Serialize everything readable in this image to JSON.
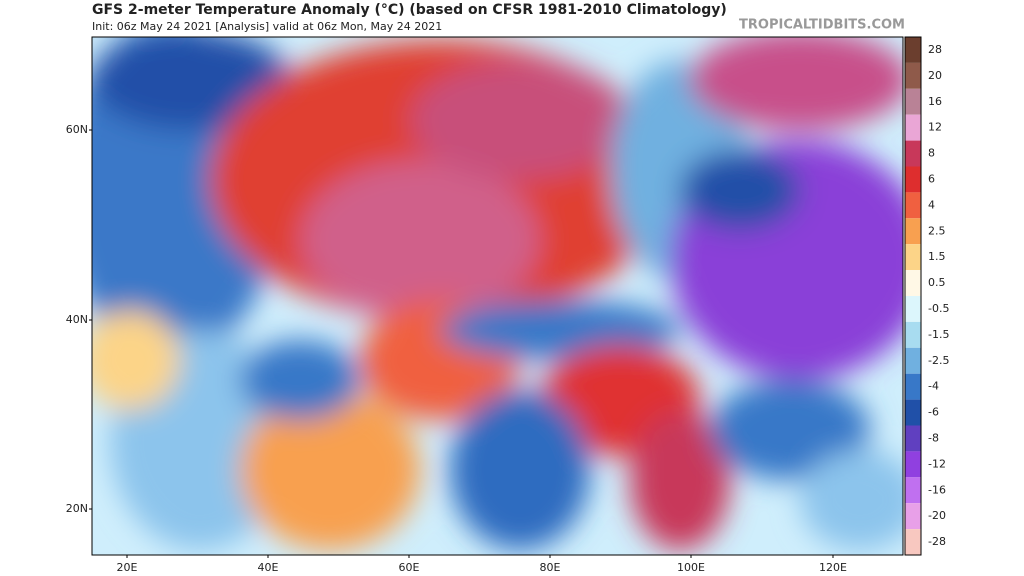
{
  "header": {
    "title": "GFS 2-meter Temperature Anomaly (°C) (based on CFSR 1981-2010 Climatology)",
    "subtitle": "Init: 06z May 24 2021   [Analysis]   valid at 06z Mon, May 24 2021",
    "watermark": "TROPICALTIDBITS.COM"
  },
  "map": {
    "lat_labels": [
      "60N",
      "40N",
      "20N"
    ],
    "lon_labels": [
      "20E",
      "40E",
      "60E",
      "80E",
      "100E",
      "120E"
    ]
  },
  "colorbar": [
    {
      "value": 28,
      "color": "#6b3e2e"
    },
    {
      "value": 20,
      "color": "#8f5a4a"
    },
    {
      "value": 16,
      "color": "#b98296"
    },
    {
      "value": 12,
      "color": "#eaa6d6"
    },
    {
      "value": 8,
      "color": "#c8385a"
    },
    {
      "value": 6,
      "color": "#de2e2e"
    },
    {
      "value": 4,
      "color": "#f06040"
    },
    {
      "value": 2.5,
      "color": "#f8a050"
    },
    {
      "value": 1.5,
      "color": "#fcd488"
    },
    {
      "value": 0.5,
      "color": "#fff8e6"
    },
    {
      "value": -0.5,
      "color": "#dcf6fc"
    },
    {
      "value": -1.5,
      "color": "#a8dcf0"
    },
    {
      "value": -2.5,
      "color": "#70b0e0"
    },
    {
      "value": -4,
      "color": "#3878c8"
    },
    {
      "value": -6,
      "color": "#2050a8"
    },
    {
      "value": -8,
      "color": "#6040c0"
    },
    {
      "value": -12,
      "color": "#9040e0"
    },
    {
      "value": -16,
      "color": "#c070f0"
    },
    {
      "value": -20,
      "color": "#e8a0e8"
    },
    {
      "value": -28,
      "color": "#f8c8c0"
    }
  ]
}
